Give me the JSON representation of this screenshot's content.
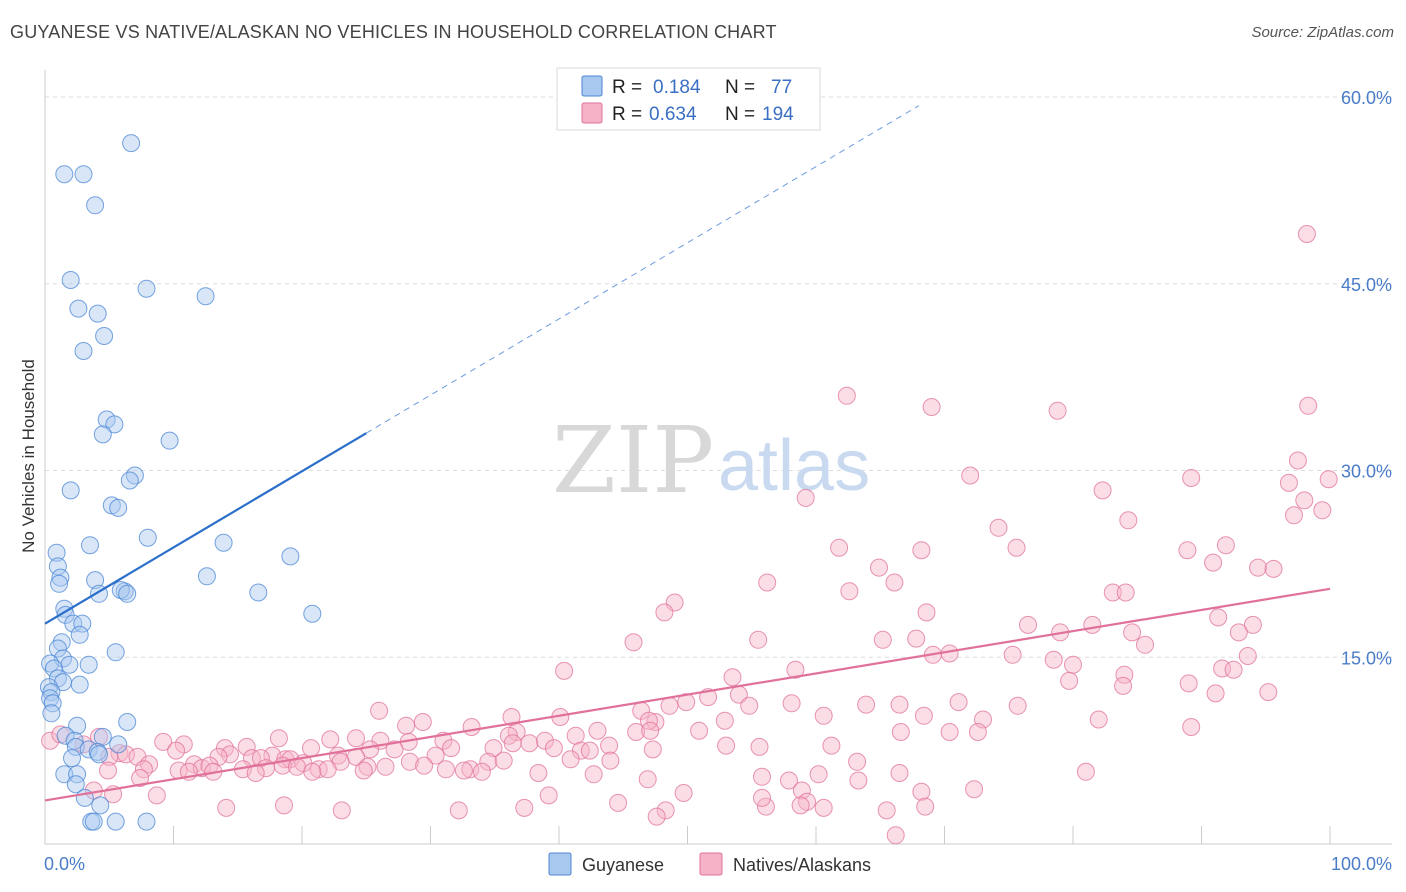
{
  "header": {
    "title": "GUYANESE VS NATIVE/ALASKAN NO VEHICLES IN HOUSEHOLD CORRELATION CHART",
    "source": "Source: ZipAtlas.com"
  },
  "watermark": {
    "zip": "ZIP",
    "atlas": "atlas"
  },
  "legend": {
    "rows": [
      {
        "r_label": "R =",
        "r_value": "0.184",
        "n_label": "N =",
        "n_value": "77",
        "color": "#a9c8f0"
      },
      {
        "r_label": "R =",
        "r_value": "0.634",
        "n_label": "N =",
        "n_value": "194",
        "color": "#f6b3c8"
      }
    ]
  },
  "bottom_legend": {
    "items": [
      {
        "label": "Guyanese",
        "color": "#a9c8f0"
      },
      {
        "label": "Natives/Alaskans",
        "color": "#f6b3c8"
      }
    ]
  },
  "chart_data": {
    "type": "scatter",
    "title": "GUYANESE VS NATIVE/ALASKAN NO VEHICLES IN HOUSEHOLD CORRELATION CHART",
    "xlabel": "",
    "ylabel": "No Vehicles in Household",
    "xlim": [
      0,
      100
    ],
    "ylim": [
      0,
      63
    ],
    "x_tick_labels": [
      "0.0%",
      "100.0%"
    ],
    "y_ticks": [
      15,
      30,
      45,
      60
    ],
    "y_tick_labels": [
      "15.0%",
      "30.0%",
      "45.0%",
      "60.0%"
    ],
    "grid": "horizontal dashed",
    "legend_placement": "top-center",
    "series": [
      {
        "name": "Guyanese",
        "color": "#4a86d4",
        "fill": "#a9c8f0",
        "r": 0.184,
        "n": 77,
        "trend": {
          "x": [
            0,
            25
          ],
          "y": [
            17.7,
            33.0
          ]
        },
        "trend_extension": {
          "x": [
            25,
            68
          ],
          "y": [
            33.0,
            59.3
          ]
        },
        "points": [
          [
            6.7,
            56.3
          ],
          [
            1.5,
            53.8
          ],
          [
            3.0,
            53.8
          ],
          [
            3.9,
            51.3
          ],
          [
            2.0,
            45.3
          ],
          [
            7.9,
            44.6
          ],
          [
            12.5,
            44.0
          ],
          [
            2.6,
            43.0
          ],
          [
            4.1,
            42.6
          ],
          [
            4.6,
            40.8
          ],
          [
            3.0,
            39.6
          ],
          [
            4.8,
            34.1
          ],
          [
            5.4,
            33.7
          ],
          [
            4.5,
            32.9
          ],
          [
            9.7,
            32.4
          ],
          [
            7.0,
            29.6
          ],
          [
            6.6,
            29.2
          ],
          [
            2.0,
            28.4
          ],
          [
            5.2,
            27.2
          ],
          [
            5.7,
            27.0
          ],
          [
            8.0,
            24.6
          ],
          [
            13.9,
            24.2
          ],
          [
            3.5,
            24.0
          ],
          [
            0.9,
            23.4
          ],
          [
            19.1,
            23.1
          ],
          [
            1.0,
            22.3
          ],
          [
            12.6,
            21.5
          ],
          [
            3.9,
            21.2
          ],
          [
            1.2,
            21.4
          ],
          [
            1.1,
            20.9
          ],
          [
            6.2,
            20.3
          ],
          [
            5.9,
            20.4
          ],
          [
            4.2,
            20.1
          ],
          [
            16.6,
            20.2
          ],
          [
            6.4,
            20.1
          ],
          [
            20.8,
            18.5
          ],
          [
            1.5,
            18.9
          ],
          [
            1.6,
            18.4
          ],
          [
            2.2,
            17.7
          ],
          [
            2.9,
            17.7
          ],
          [
            2.7,
            16.8
          ],
          [
            1.3,
            16.2
          ],
          [
            5.5,
            15.4
          ],
          [
            1.0,
            15.7
          ],
          [
            1.4,
            14.9
          ],
          [
            1.9,
            14.4
          ],
          [
            3.4,
            14.4
          ],
          [
            0.4,
            14.5
          ],
          [
            0.7,
            14.1
          ],
          [
            1.0,
            13.3
          ],
          [
            1.4,
            13.0
          ],
          [
            2.7,
            12.8
          ],
          [
            0.3,
            12.6
          ],
          [
            0.5,
            12.2
          ],
          [
            0.4,
            11.7
          ],
          [
            0.6,
            11.3
          ],
          [
            0.5,
            10.5
          ],
          [
            6.4,
            9.8
          ],
          [
            2.5,
            9.5
          ],
          [
            1.6,
            8.7
          ],
          [
            2.3,
            8.3
          ],
          [
            4.5,
            8.6
          ],
          [
            5.7,
            8.0
          ],
          [
            2.4,
            7.8
          ],
          [
            3.4,
            7.6
          ],
          [
            4.1,
            7.4
          ],
          [
            4.2,
            7.2
          ],
          [
            2.1,
            6.9
          ],
          [
            1.5,
            5.6
          ],
          [
            2.5,
            5.6
          ],
          [
            2.4,
            4.8
          ],
          [
            3.1,
            3.7
          ],
          [
            4.3,
            3.1
          ],
          [
            3.6,
            1.8
          ],
          [
            3.8,
            1.8
          ],
          [
            5.5,
            1.8
          ],
          [
            7.9,
            1.8
          ]
        ]
      },
      {
        "name": "Natives/Alaskans",
        "color": "#e0719b",
        "fill": "#f6b3c8",
        "r": 0.634,
        "n": 194,
        "trend": {
          "x": [
            0,
            100
          ],
          "y": [
            3.5,
            20.5
          ]
        },
        "points": [
          [
            98.2,
            49.0
          ],
          [
            62.4,
            36.0
          ],
          [
            69.0,
            35.1
          ],
          [
            78.8,
            34.8
          ],
          [
            98.3,
            35.2
          ],
          [
            97.5,
            30.8
          ],
          [
            72.0,
            29.6
          ],
          [
            89.2,
            29.4
          ],
          [
            96.8,
            29.0
          ],
          [
            99.9,
            29.3
          ],
          [
            82.3,
            28.4
          ],
          [
            98.0,
            27.6
          ],
          [
            59.2,
            27.8
          ],
          [
            97.2,
            26.4
          ],
          [
            99.4,
            26.8
          ],
          [
            84.3,
            26.0
          ],
          [
            74.2,
            25.4
          ],
          [
            61.8,
            23.8
          ],
          [
            68.2,
            23.6
          ],
          [
            75.6,
            23.8
          ],
          [
            88.9,
            23.6
          ],
          [
            91.9,
            24.0
          ],
          [
            64.9,
            22.2
          ],
          [
            90.9,
            22.6
          ],
          [
            94.4,
            22.2
          ],
          [
            95.6,
            22.1
          ],
          [
            56.2,
            21.0
          ],
          [
            66.1,
            21.0
          ],
          [
            62.6,
            20.3
          ],
          [
            83.1,
            20.2
          ],
          [
            84.1,
            20.2
          ],
          [
            49.0,
            19.4
          ],
          [
            48.2,
            18.6
          ],
          [
            68.6,
            18.6
          ],
          [
            91.3,
            18.2
          ],
          [
            76.5,
            17.6
          ],
          [
            81.5,
            17.6
          ],
          [
            94.0,
            17.6
          ],
          [
            79.0,
            17.0
          ],
          [
            84.6,
            17.0
          ],
          [
            92.9,
            17.0
          ],
          [
            45.8,
            16.2
          ],
          [
            55.5,
            16.4
          ],
          [
            65.2,
            16.4
          ],
          [
            67.8,
            16.5
          ],
          [
            85.6,
            16.0
          ],
          [
            75.3,
            15.2
          ],
          [
            70.4,
            15.3
          ],
          [
            93.6,
            15.1
          ],
          [
            80.0,
            14.4
          ],
          [
            78.5,
            14.8
          ],
          [
            58.4,
            14.0
          ],
          [
            40.4,
            13.9
          ],
          [
            69.1,
            15.2
          ],
          [
            91.6,
            14.1
          ],
          [
            92.5,
            14.0
          ],
          [
            84.0,
            13.6
          ],
          [
            53.5,
            13.4
          ],
          [
            79.7,
            13.1
          ],
          [
            89.0,
            12.9
          ],
          [
            83.9,
            12.7
          ],
          [
            91.1,
            12.1
          ],
          [
            95.2,
            12.2
          ],
          [
            54.0,
            12.0
          ],
          [
            51.6,
            11.8
          ],
          [
            58.1,
            11.3
          ],
          [
            49.9,
            11.4
          ],
          [
            71.1,
            11.4
          ],
          [
            54.8,
            11.1
          ],
          [
            63.9,
            11.2
          ],
          [
            66.5,
            11.2
          ],
          [
            75.7,
            11.1
          ],
          [
            26.0,
            10.7
          ],
          [
            48.6,
            11.1
          ],
          [
            36.3,
            10.2
          ],
          [
            46.4,
            10.7
          ],
          [
            40.1,
            10.2
          ],
          [
            60.6,
            10.3
          ],
          [
            68.4,
            10.3
          ],
          [
            73.0,
            10.0
          ],
          [
            82.0,
            10.0
          ],
          [
            29.4,
            9.8
          ],
          [
            52.9,
            9.9
          ],
          [
            47.5,
            9.8
          ],
          [
            46.0,
            9.0
          ],
          [
            28.1,
            9.5
          ],
          [
            33.2,
            9.4
          ],
          [
            43.0,
            9.1
          ],
          [
            66.6,
            9.0
          ],
          [
            36.7,
            9.0
          ],
          [
            47.0,
            9.9
          ],
          [
            50.9,
            9.1
          ],
          [
            70.4,
            9.0
          ],
          [
            72.6,
            9.0
          ],
          [
            89.2,
            9.4
          ],
          [
            36.1,
            8.7
          ],
          [
            41.3,
            8.7
          ],
          [
            47.1,
            9.1
          ],
          [
            4.2,
            8.6
          ],
          [
            18.2,
            8.5
          ],
          [
            22.2,
            8.4
          ],
          [
            24.2,
            8.5
          ],
          [
            26.1,
            8.3
          ],
          [
            28.3,
            8.2
          ],
          [
            31.0,
            8.3
          ],
          [
            36.4,
            8.1
          ],
          [
            37.7,
            8.1
          ],
          [
            38.9,
            8.3
          ],
          [
            43.9,
            7.9
          ],
          [
            53.0,
            7.9
          ],
          [
            55.6,
            7.8
          ],
          [
            61.2,
            7.9
          ],
          [
            3.0,
            8.0
          ],
          [
            9.2,
            8.2
          ],
          [
            10.8,
            8.0
          ],
          [
            14.0,
            7.7
          ],
          [
            15.7,
            7.8
          ],
          [
            20.7,
            7.7
          ],
          [
            25.3,
            7.6
          ],
          [
            27.2,
            7.6
          ],
          [
            31.6,
            7.7
          ],
          [
            34.9,
            7.7
          ],
          [
            39.6,
            7.7
          ],
          [
            41.7,
            7.5
          ],
          [
            42.4,
            7.5
          ],
          [
            5.8,
            7.3
          ],
          [
            6.3,
            7.2
          ],
          [
            10.2,
            7.5
          ],
          [
            14.4,
            7.2
          ],
          [
            17.7,
            7.1
          ],
          [
            22.8,
            7.1
          ],
          [
            24.2,
            7.0
          ],
          [
            30.4,
            7.1
          ],
          [
            47.3,
            7.6
          ],
          [
            5.0,
            7.0
          ],
          [
            7.2,
            7.0
          ],
          [
            13.5,
            7.0
          ],
          [
            16.1,
            6.9
          ],
          [
            16.8,
            6.9
          ],
          [
            18.7,
            6.8
          ],
          [
            19.1,
            6.8
          ],
          [
            20.1,
            6.5
          ],
          [
            23.0,
            6.6
          ],
          [
            28.4,
            6.6
          ],
          [
            34.5,
            6.6
          ],
          [
            35.7,
            6.7
          ],
          [
            40.9,
            6.8
          ],
          [
            44.0,
            6.7
          ],
          [
            63.2,
            6.6
          ],
          [
            8.1,
            6.4
          ],
          [
            11.6,
            6.4
          ],
          [
            12.2,
            6.1
          ],
          [
            12.8,
            6.3
          ],
          [
            15.4,
            6.0
          ],
          [
            17.2,
            6.1
          ],
          [
            18.5,
            6.3
          ],
          [
            19.6,
            6.2
          ],
          [
            21.3,
            6.0
          ],
          [
            22.0,
            6.0
          ],
          [
            25.1,
            6.2
          ],
          [
            26.5,
            6.2
          ],
          [
            29.5,
            6.3
          ],
          [
            31.2,
            6.0
          ],
          [
            33.1,
            6.0
          ],
          [
            4.9,
            5.9
          ],
          [
            7.7,
            6.0
          ],
          [
            10.4,
            5.9
          ],
          [
            11.2,
            5.8
          ],
          [
            13.1,
            5.8
          ],
          [
            16.4,
            5.7
          ],
          [
            20.8,
            5.8
          ],
          [
            24.8,
            5.9
          ],
          [
            32.6,
            5.9
          ],
          [
            34.0,
            5.8
          ],
          [
            38.4,
            5.7
          ],
          [
            66.5,
            5.7
          ],
          [
            81.0,
            5.8
          ],
          [
            7.4,
            5.3
          ],
          [
            42.7,
            5.6
          ],
          [
            46.9,
            5.2
          ],
          [
            57.9,
            5.1
          ],
          [
            63.3,
            5.1
          ],
          [
            60.2,
            5.6
          ],
          [
            55.8,
            5.4
          ],
          [
            49.7,
            4.1
          ],
          [
            58.9,
            4.3
          ],
          [
            68.2,
            4.2
          ],
          [
            72.3,
            4.4
          ],
          [
            3.8,
            4.3
          ],
          [
            5.3,
            4.0
          ],
          [
            8.7,
            3.9
          ],
          [
            39.2,
            3.9
          ],
          [
            44.6,
            3.3
          ],
          [
            59.3,
            3.4
          ],
          [
            65.5,
            2.7
          ],
          [
            68.5,
            3.0
          ],
          [
            66.2,
            0.7
          ],
          [
            60.6,
            2.9
          ],
          [
            58.8,
            3.1
          ],
          [
            56.1,
            3.0
          ],
          [
            55.8,
            3.7
          ],
          [
            48.3,
            2.7
          ],
          [
            47.6,
            2.2
          ],
          [
            37.3,
            2.9
          ],
          [
            32.2,
            2.7
          ],
          [
            23.1,
            2.7
          ],
          [
            18.6,
            3.1
          ],
          [
            14.1,
            2.9
          ],
          [
            0.4,
            8.3
          ],
          [
            1.2,
            8.8
          ]
        ]
      }
    ]
  }
}
